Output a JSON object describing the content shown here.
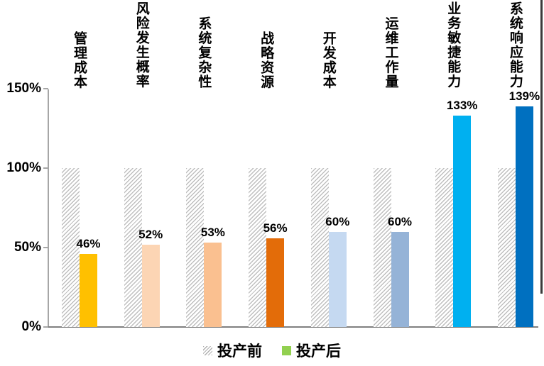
{
  "chart_data": {
    "type": "bar",
    "title": "",
    "categories": [
      "管理成本",
      "风险发生概率",
      "系统复杂性",
      "战略资源",
      "开发成本",
      "运维工作量",
      "业务敏捷能力",
      "系统响应能力"
    ],
    "series": [
      {
        "name": "投产前",
        "values": [
          100,
          100,
          100,
          100,
          100,
          100,
          100,
          100
        ],
        "style": "hatched-gray"
      },
      {
        "name": "投产后",
        "values": [
          46,
          52,
          53,
          56,
          60,
          60,
          133,
          139
        ],
        "colors": [
          "#FFC000",
          "#FCD5B4",
          "#FAC090",
          "#E36C09",
          "#C5D9F1",
          "#95B3D7",
          "#00B0F0",
          "#0070C0"
        ]
      }
    ],
    "value_labels": [
      "46%",
      "52%",
      "53%",
      "56%",
      "60%",
      "60%",
      "133%",
      "139%"
    ],
    "yticks": [
      {
        "label": "150%",
        "value": 150
      },
      {
        "label": "100%",
        "value": 100
      },
      {
        "label": "50%",
        "value": 50
      },
      {
        "label": "0%",
        "value": 0
      }
    ],
    "ylim": [
      0,
      150
    ],
    "grid": false,
    "legend_position": "bottom-center",
    "legend": {
      "before_label": "投产前",
      "after_label": "投产后",
      "after_swatch_color": "#92D050"
    },
    "style_colors": {
      "hatch": "#BFBFBF",
      "baseline": "#808080",
      "y_axis": "#A6A6A6"
    }
  }
}
